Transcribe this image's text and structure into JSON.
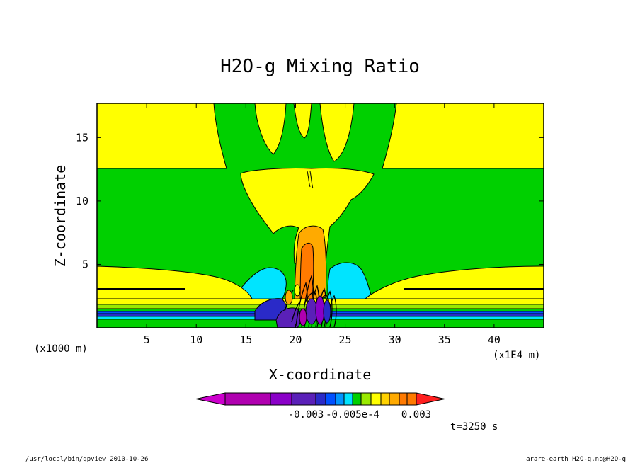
{
  "chart_data": {
    "type": "heatmap",
    "title": "H2O-g Mixing Ratio",
    "xlabel": "X-coordinate",
    "ylabel": "Z-coordinate",
    "x_unit_note": "(x1E4 m)",
    "y_unit_note": "(x1000 m)",
    "x_ticks": [
      5,
      10,
      15,
      20,
      25,
      30,
      35,
      40
    ],
    "y_ticks": [
      5,
      10,
      15
    ],
    "xlim": [
      0,
      45
    ],
    "ylim": [
      0,
      17.7
    ],
    "colorbar": {
      "colors": [
        "#cc00cc",
        "#b000b0",
        "#8a00c8",
        "#5a20b8",
        "#2a2ac8",
        "#0050ff",
        "#0096ff",
        "#00e4ff",
        "#00d000",
        "#9aea00",
        "#ffff00",
        "#ffd200",
        "#ffaa00",
        "#ff7a00",
        "#ff2020"
      ],
      "tick_labels": [
        "-0.003",
        "-0.005e-4",
        "0.003"
      ]
    },
    "time_label": "t=3250 s",
    "footer_left": "/usr/local/bin/gpview  2010-10-26",
    "footer_right": "arare-earth_H2O-g.nc@H2O-g"
  }
}
